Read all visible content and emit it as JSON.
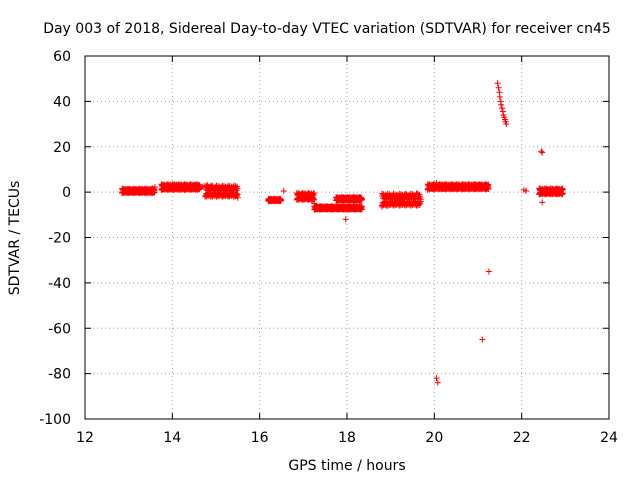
{
  "chart_data": {
    "type": "scatter",
    "title": "Day 003 of 2018, Sidereal Day-to-day VTEC variation (SDTVAR) for receiver cn45",
    "xlabel": "GPS time / hours",
    "ylabel": "SDTVAR / TECUs",
    "xlim": [
      12,
      24
    ],
    "ylim": [
      -100,
      60
    ],
    "xticks": [
      12,
      14,
      16,
      18,
      20,
      22,
      24
    ],
    "yticks": [
      -100,
      -80,
      -60,
      -40,
      -20,
      0,
      20,
      40,
      60
    ],
    "xtick_labels": [
      "12",
      "14",
      "16",
      "18",
      "20",
      "22",
      "24"
    ],
    "ytick_labels": [
      "-100",
      "-80",
      "-60",
      "-40",
      "-20",
      "0",
      "20",
      "40",
      "60"
    ],
    "grid": true,
    "marker": "+",
    "color": "#ff0000",
    "series": [
      {
        "name": "SDTVAR",
        "points": [
          [
            12.85,
            0.0
          ],
          [
            12.95,
            0.4
          ],
          [
            13.05,
            0.6
          ],
          [
            13.15,
            0.5
          ],
          [
            13.25,
            0.6
          ],
          [
            13.35,
            0.8
          ],
          [
            13.45,
            1.0
          ],
          [
            13.55,
            1.6
          ],
          [
            13.6,
            2.2
          ],
          [
            13.75,
            1.0
          ],
          [
            13.8,
            2.6
          ],
          [
            13.9,
            2.8
          ],
          [
            14.0,
            3.0
          ],
          [
            14.1,
            3.2
          ],
          [
            14.2,
            3.0
          ],
          [
            14.3,
            3.0
          ],
          [
            14.4,
            3.2
          ],
          [
            14.5,
            3.0
          ],
          [
            14.6,
            2.8
          ],
          [
            14.7,
            2.5
          ],
          [
            14.05,
            1.2
          ],
          [
            14.25,
            1.5
          ],
          [
            14.45,
            1.8
          ],
          [
            14.8,
            3.2
          ],
          [
            14.9,
            2.5
          ],
          [
            15.0,
            2.0
          ],
          [
            15.1,
            1.5
          ],
          [
            15.2,
            1.0
          ],
          [
            15.3,
            0.5
          ],
          [
            15.4,
            -0.5
          ],
          [
            15.45,
            -1.5
          ],
          [
            15.5,
            -2.5
          ],
          [
            15.05,
            0.5
          ],
          [
            15.25,
            -0.5
          ],
          [
            16.2,
            -3.5
          ],
          [
            16.3,
            -3.8
          ],
          [
            16.45,
            -3.5
          ],
          [
            16.55,
            0.5
          ],
          [
            16.9,
            -1.0
          ],
          [
            17.0,
            -2.0
          ],
          [
            17.1,
            -3.0
          ],
          [
            17.2,
            -4.0
          ],
          [
            17.25,
            -5.0
          ],
          [
            17.3,
            -6.0
          ],
          [
            17.4,
            -6.5
          ],
          [
            17.5,
            -7.0
          ],
          [
            17.6,
            -7.0
          ],
          [
            17.8,
            -3.5
          ],
          [
            17.9,
            -3.0
          ],
          [
            18.0,
            -3.2
          ],
          [
            18.1,
            -3.5
          ],
          [
            18.2,
            -2.8
          ],
          [
            18.25,
            -3.2
          ],
          [
            17.7,
            -7.0
          ],
          [
            17.85,
            -7.0
          ],
          [
            18.0,
            -7.0
          ],
          [
            18.15,
            -7.0
          ],
          [
            18.3,
            -7.0
          ],
          [
            17.97,
            -12.0
          ],
          [
            18.8,
            -6.5
          ],
          [
            18.9,
            -6.0
          ],
          [
            19.0,
            -5.0
          ],
          [
            19.1,
            -4.0
          ],
          [
            19.2,
            -3.5
          ],
          [
            19.3,
            -3.0
          ],
          [
            19.4,
            -2.0
          ],
          [
            19.5,
            -1.0
          ],
          [
            19.6,
            -0.5
          ],
          [
            19.85,
            1.0
          ],
          [
            19.95,
            1.5
          ],
          [
            20.05,
            4.0
          ],
          [
            20.1,
            2.0
          ],
          [
            20.2,
            1.5
          ],
          [
            20.3,
            1.8
          ],
          [
            20.4,
            2.0
          ],
          [
            20.5,
            2.2
          ],
          [
            20.6,
            2.5
          ],
          [
            20.7,
            2.8
          ],
          [
            20.8,
            3.0
          ],
          [
            20.9,
            3.2
          ],
          [
            21.0,
            3.0
          ],
          [
            21.1,
            2.5
          ],
          [
            21.2,
            2.0
          ],
          [
            20.05,
            -82.0
          ],
          [
            20.08,
            -84.0
          ],
          [
            21.1,
            -65.0
          ],
          [
            21.25,
            -35.0
          ],
          [
            21.45,
            48.0
          ],
          [
            21.47,
            46.0
          ],
          [
            21.49,
            44.0
          ],
          [
            21.5,
            42.0
          ],
          [
            21.52,
            40.0
          ],
          [
            21.53,
            38.5
          ],
          [
            21.55,
            37.0
          ],
          [
            21.57,
            35.5
          ],
          [
            21.58,
            34.0
          ],
          [
            21.6,
            33.0
          ],
          [
            21.62,
            32.0
          ],
          [
            21.63,
            31.0
          ],
          [
            21.65,
            30.0
          ],
          [
            22.05,
            1.0
          ],
          [
            22.1,
            0.5
          ],
          [
            22.45,
            18.0
          ],
          [
            22.47,
            17.5
          ],
          [
            22.47,
            -4.5
          ],
          [
            22.45,
            -0.5
          ],
          [
            22.5,
            0.0
          ],
          [
            22.55,
            -0.5
          ],
          [
            22.6,
            -0.3
          ],
          [
            22.65,
            0.0
          ],
          [
            22.7,
            0.5
          ],
          [
            22.75,
            1.0
          ],
          [
            22.8,
            0.5
          ],
          [
            22.85,
            -0.5
          ],
          [
            22.9,
            0.0
          ]
        ],
        "clusters": [
          {
            "x_start": 12.85,
            "x_end": 13.6,
            "y_low": -0.8,
            "y_high": 1.8
          },
          {
            "x_start": 13.75,
            "x_end": 14.65,
            "y_low": 0.5,
            "y_high": 3.8
          },
          {
            "x_start": 14.75,
            "x_end": 15.5,
            "y_low": -3.0,
            "y_high": 3.5
          },
          {
            "x_start": 16.2,
            "x_end": 16.5,
            "y_low": -4.2,
            "y_high": -2.8
          },
          {
            "x_start": 16.85,
            "x_end": 17.25,
            "y_low": -4.0,
            "y_high": 0.0
          },
          {
            "x_start": 17.25,
            "x_end": 18.35,
            "y_low": -8.0,
            "y_high": -6.0
          },
          {
            "x_start": 17.75,
            "x_end": 18.35,
            "y_low": -4.0,
            "y_high": -2.0
          },
          {
            "x_start": 18.8,
            "x_end": 19.7,
            "y_low": -7.0,
            "y_high": 0.0
          },
          {
            "x_start": 19.85,
            "x_end": 21.25,
            "y_low": 0.8,
            "y_high": 3.8
          },
          {
            "x_start": 22.4,
            "x_end": 22.95,
            "y_low": -1.5,
            "y_high": 2.0
          }
        ]
      }
    ]
  }
}
